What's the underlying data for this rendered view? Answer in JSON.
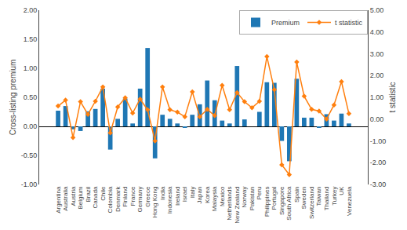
{
  "chart_data": {
    "type": "bar",
    "categories": [
      "Argentina",
      "Australia",
      "Austria",
      "Belgium",
      "Brazil",
      "Canada",
      "Chile",
      "Colombia",
      "Denmark",
      "Finland",
      "France",
      "Germany",
      "Greece",
      "Hong Kong",
      "India",
      "Indonesia",
      "Ireland",
      "Israel",
      "Italy",
      "Japan",
      "Korea",
      "Malaysia",
      "Mexico",
      "Netherlands",
      "New Zealand",
      "Norway",
      "Pakistan",
      "Peru",
      "Philippines",
      "Portugal",
      "Singapore",
      "South Africa",
      "Spain",
      "Sweden",
      "Switzerland",
      "Taiwan",
      "Thailand",
      "Turkey",
      "UK",
      "Venezuela"
    ],
    "series": [
      {
        "name": "Premium",
        "type": "bar",
        "values": [
          0.27,
          0.35,
          -0.05,
          -0.08,
          0.26,
          0.3,
          0.65,
          -0.4,
          0.13,
          0.48,
          0.05,
          0.65,
          1.35,
          -0.55,
          0.2,
          0.13,
          0.05,
          -0.02,
          0.2,
          0.38,
          0.79,
          0.45,
          0.1,
          0.05,
          1.04,
          0.12,
          0.0,
          0.25,
          0.76,
          0.75,
          -0.25,
          -0.6,
          0.82,
          0.15,
          0.15,
          -0.02,
          0.21,
          0.1,
          0.22,
          0.05
        ]
      },
      {
        "name": "t statistic",
        "type": "line",
        "marker": "diamond",
        "axis": "y2",
        "values": [
          0.6,
          0.87,
          -0.85,
          0.8,
          0.22,
          0.82,
          1.48,
          -0.63,
          0.56,
          0.98,
          0.28,
          0.92,
          0.43,
          -1.0,
          1.48,
          0.43,
          0.32,
          0.11,
          1.25,
          0.11,
          0.45,
          0.16,
          1.55,
          0.43,
          1.22,
          0.8,
          0.52,
          0.82,
          2.87,
          1.35,
          -2.1,
          -2.55,
          2.62,
          1.05,
          0.45,
          0.37,
          0.0,
          0.65,
          1.72,
          0.25
        ]
      }
    ],
    "ylabel": "Cross-listing premium",
    "y2label": "t statistic",
    "ylim": [
      -1.0,
      2.0
    ],
    "yticks": [
      {
        "value": -1.0,
        "label": "-1.00"
      },
      {
        "value": -0.5,
        "label": "-0.50"
      },
      {
        "value": 0.0,
        "label": "0.00"
      },
      {
        "value": 0.5,
        "label": "0.50"
      },
      {
        "value": 1.0,
        "label": "1.00"
      },
      {
        "value": 1.5,
        "label": "1.50"
      },
      {
        "value": 2.0,
        "label": "2.00"
      }
    ],
    "y2lim": [
      -3.0,
      5.0
    ],
    "y2ticks": [
      {
        "value": -3.0,
        "label": "-3.00"
      },
      {
        "value": -2.0,
        "label": "-2.00"
      },
      {
        "value": -1.0,
        "label": "-1.00"
      },
      {
        "value": 0.0,
        "label": "0.00"
      },
      {
        "value": 1.0,
        "label": "1.00"
      },
      {
        "value": 2.0,
        "label": "2.00"
      },
      {
        "value": 3.0,
        "label": "3.00"
      },
      {
        "value": 4.0,
        "label": "4.00"
      },
      {
        "value": 5.0,
        "label": "5.00"
      }
    ],
    "legend": "upper right",
    "grid": false
  }
}
